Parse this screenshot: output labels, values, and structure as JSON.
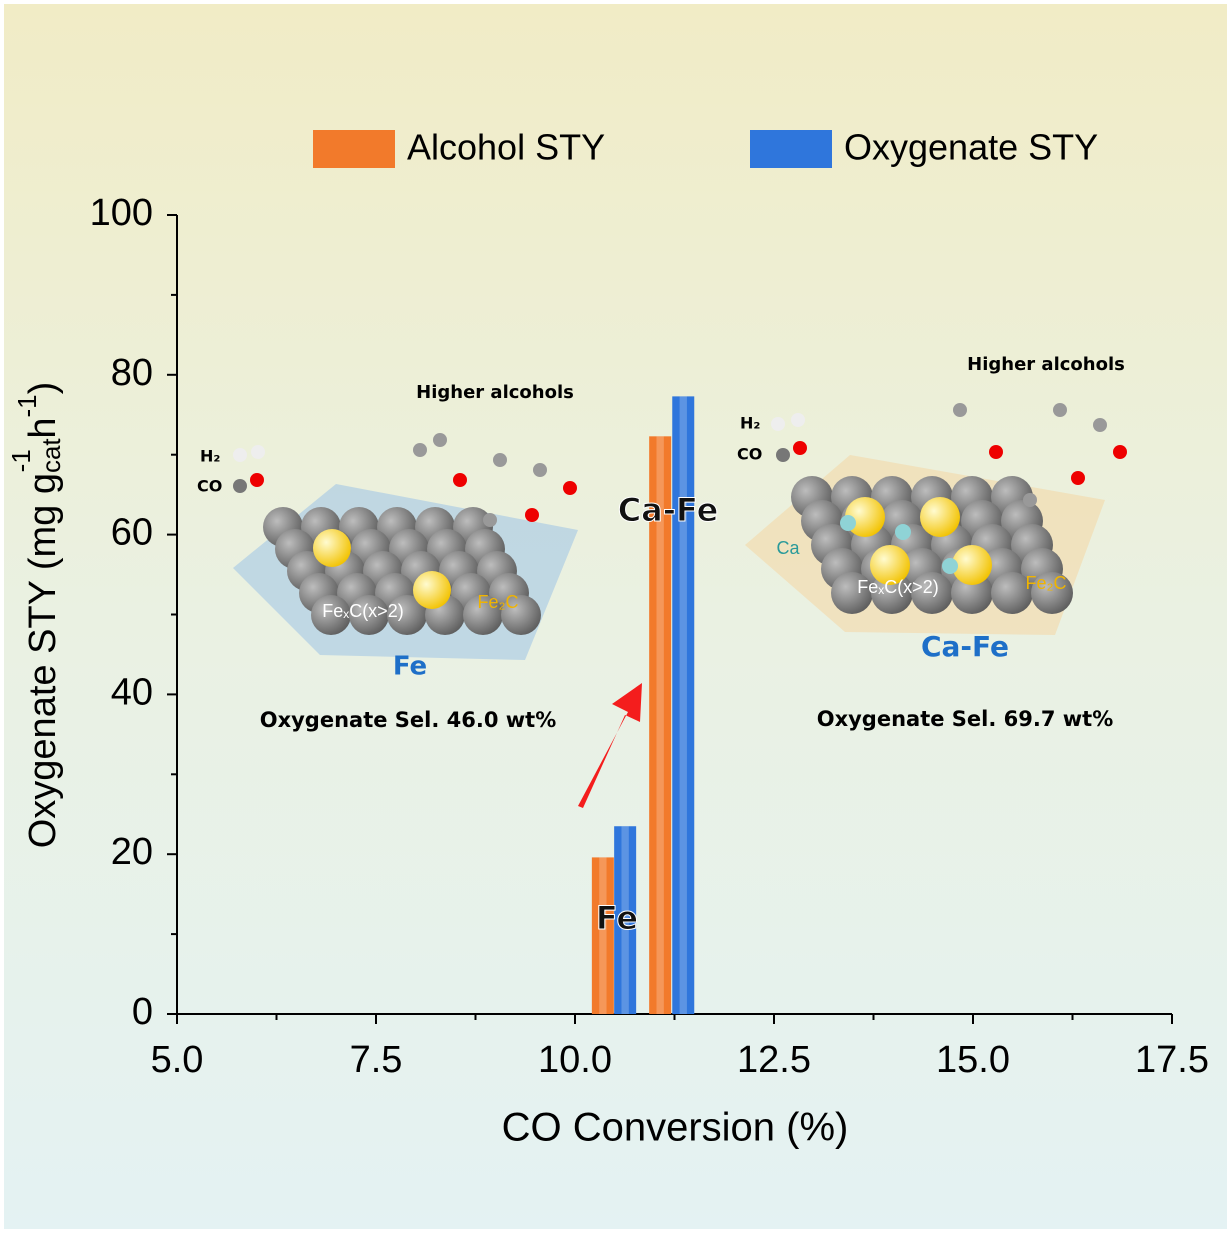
{
  "chart_data": {
    "type": "bar",
    "xlabel": "CO Conversion (%)",
    "ylabel": [
      "Oxygenate STY (mg g",
      "cat",
      "-1",
      " h",
      "-1",
      ")"
    ],
    "xlim": [
      5,
      17.5
    ],
    "xticks": [
      {
        "value": 5,
        "label": "5.0"
      },
      7.5,
      {
        "value": 10,
        "label": "10.0"
      },
      12.5,
      {
        "value": 15,
        "label": "15.0"
      },
      17.5
    ],
    "ylim": [
      0,
      100
    ],
    "yticks": [
      0,
      20,
      40,
      60,
      80,
      100
    ],
    "series": [
      {
        "name": "Alcohol STY",
        "color": "#f27a2b",
        "x": [
          10.35,
          11.07
        ],
        "values": [
          19.6,
          72.3
        ]
      },
      {
        "name": "Oxygenate STY",
        "color": "#2f76dc",
        "x": [
          10.63,
          11.36
        ],
        "values": [
          23.5,
          77.3
        ]
      }
    ],
    "annotations": [
      "Fe",
      "Ca-Fe",
      "Higher alcohols",
      "H₂",
      "CO",
      "FeₓC(x>2)",
      "Fe₂C",
      "Fe",
      "Oxygenate Sel. 46.0 wt%",
      "Higher alcohols",
      "H₂",
      "CO",
      "Ca",
      "FeₓC(x>2)",
      "Fe₂C",
      "Ca-Fe",
      "Oxygenate Sel. 69.7 wt%"
    ]
  }
}
